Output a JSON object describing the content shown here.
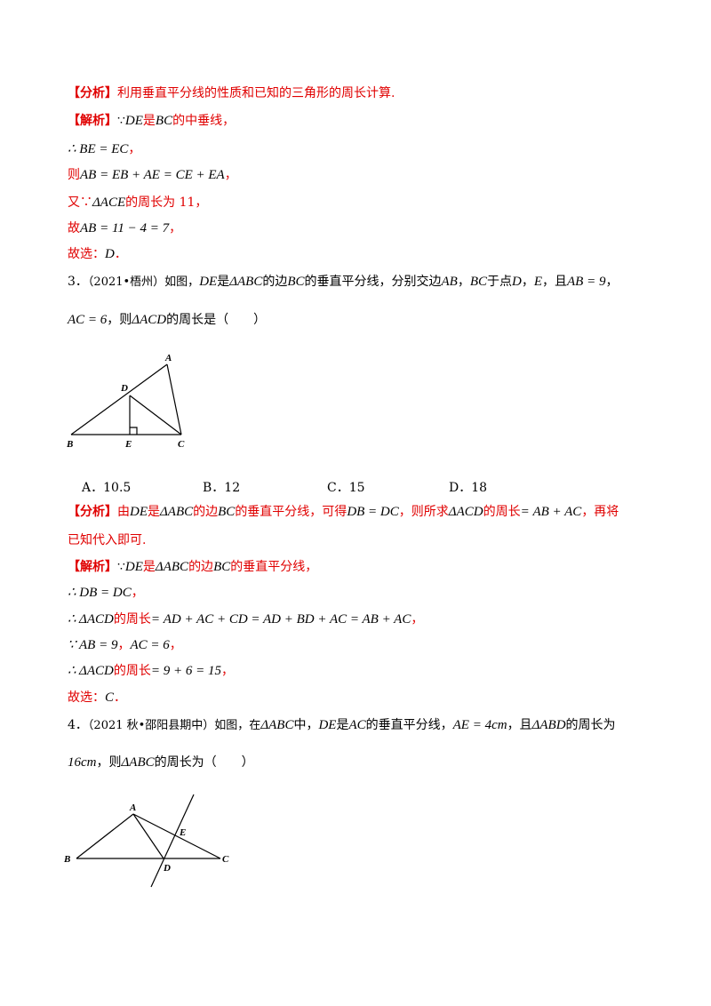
{
  "lines": {
    "l1": {
      "tag": "【分析】",
      "text": "利用垂直平分线的性质和已知的三角形的周长计算."
    },
    "l2": {
      "tag": "【解析】",
      "t1": "∵",
      "m1": "DE",
      "t2": "是",
      "m2": "BC",
      "t3": "的中垂线，"
    },
    "l3": {
      "m": "∴ BE = EC",
      "t": "，"
    },
    "l4": {
      "t0": "则",
      "m": "AB = EB + AE = CE + EA",
      "t": "，"
    },
    "l5": {
      "t0": "又∵",
      "m": "ΔACE",
      "t": "的周长为 11，"
    },
    "l6": {
      "t0": "故",
      "m": "AB = 11 − 4 = 7",
      "t": "，"
    },
    "l7": {
      "t0": "故选：",
      "m": "D",
      "t": "．"
    }
  },
  "q3": {
    "line1": {
      "num": "3．",
      "src": "（2021•梧州）如图，",
      "m1": "DE",
      "t1": "是",
      "m2": "ΔABC",
      "t2": "的边",
      "m3": "BC",
      "t3": "的垂直平分线，分别交边",
      "m4": "AB",
      "t4": "，",
      "m5": "BC",
      "t5": "于点",
      "m6": "D",
      "t6": "，",
      "m7": "E",
      "t7": "，且",
      "m8": "AB = 9",
      "t8": "，"
    },
    "line2": {
      "m1": "AC = 6",
      "t1": "，则",
      "m2": "ΔACD",
      "t2": "的周长是（　　）"
    },
    "figure_labels": {
      "A": "A",
      "B": "B",
      "C": "C",
      "D": "D",
      "E": "E"
    },
    "options": [
      {
        "letter": "A．",
        "value": "10.5"
      },
      {
        "letter": "B．",
        "value": "12"
      },
      {
        "letter": "C．",
        "value": "15"
      },
      {
        "letter": "D．",
        "value": "18"
      }
    ]
  },
  "ans3": {
    "a1": {
      "tag": "【分析】",
      "t1": "由",
      "m1": "DE",
      "t2": "是",
      "m2": "ΔABC",
      "t3": "的边",
      "m3": "BC",
      "t4": "的垂直平分线，可得",
      "m4": "DB = DC",
      "t5": "，则所求",
      "m5": "ΔACD",
      "t6": "的周长",
      "m6": "= AB + AC",
      "t7": "，再将"
    },
    "a2": {
      "t": "已知代入即可."
    },
    "a3": {
      "tag": "【解析】",
      "t1": "∵",
      "m1": "DE",
      "t2": "是",
      "m2": "ΔABC",
      "t3": "的边",
      "m3": "BC",
      "t4": "的垂直平分线，"
    },
    "a4": {
      "m": "∴ DB = DC",
      "t": "，"
    },
    "a5": {
      "m1": "∴ ΔACD",
      "t1": "的周长",
      "m2": "= AD + AC + CD = AD + BD + AC = AB + AC",
      "t2": "，"
    },
    "a6": {
      "m1": "∵ AB = 9",
      "t1": "，",
      "m2": "AC = 6",
      "t2": "，"
    },
    "a7": {
      "m1": "∴ ΔACD",
      "t1": "的周长",
      "m2": "= 9 + 6 = 15",
      "t2": "，"
    },
    "a8": {
      "t0": "故选：",
      "m": "C",
      "t": "．"
    }
  },
  "q4": {
    "line1": {
      "num": "4．",
      "src": "（2021 秋•邵阳县期中）如图，在",
      "m1": "ΔABC",
      "t1": "中，",
      "m2": "DE",
      "t2": "是",
      "m3": "AC",
      "t3": "的垂直平分线，",
      "m4": "AE = 4cm",
      "t4": "，且",
      "m5": "ΔABD",
      "t5": "的周长为"
    },
    "line2": {
      "m1": "16cm",
      "t1": "，则",
      "m2": "ΔABC",
      "t2": "的周长为（　　）"
    },
    "figure_labels": {
      "A": "A",
      "B": "B",
      "C": "C",
      "D": "D",
      "E": "E"
    }
  }
}
